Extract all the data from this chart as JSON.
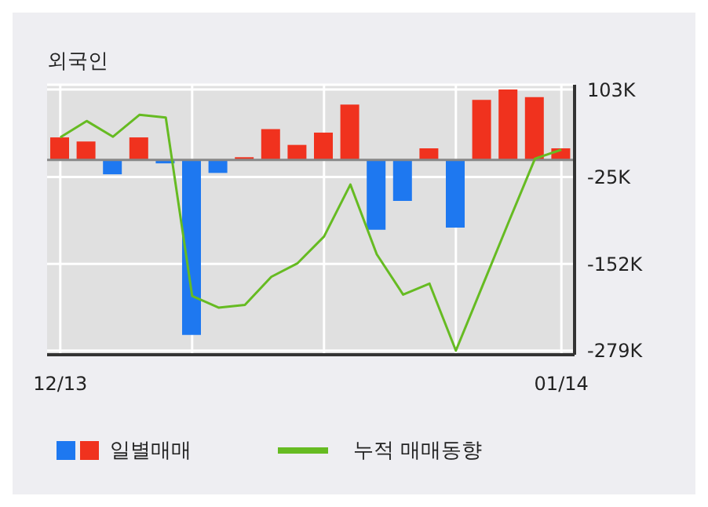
{
  "chart_data": {
    "type": "bar",
    "title": "외국인",
    "categories": [
      "12/13",
      null,
      null,
      null,
      null,
      null,
      null,
      null,
      null,
      null,
      null,
      null,
      null,
      null,
      null,
      null,
      null,
      null,
      null,
      "01/14"
    ],
    "series": [
      {
        "name": "일별매매",
        "colors": [
          "#f0321e",
          "#f0321e",
          "#1e78f0",
          "#f0321e",
          "#1e78f0",
          "#1e78f0",
          "#1e78f0",
          "#f0321e",
          "#f0321e",
          "#f0321e",
          "#f0321e",
          "#f0321e",
          "#1e78f0",
          "#1e78f0",
          "#f0321e",
          "#1e78f0",
          "#f0321e",
          "#f0321e",
          "#f0321e",
          "#f0321e"
        ],
        "values": [
          33,
          27,
          -21,
          33,
          -5,
          -256,
          -19,
          4,
          45,
          22,
          40,
          81,
          -102,
          -60,
          17,
          -99,
          88,
          103,
          92,
          17
        ]
      },
      {
        "name": "누적 매매동향",
        "type": "line",
        "color": "#66bb22",
        "values": [
          33,
          57,
          34,
          66,
          62,
          -199,
          -216,
          -212,
          -171,
          -151,
          -112,
          -36,
          -138,
          -197,
          -181,
          -279,
          -185,
          -91,
          2,
          15
        ]
      }
    ],
    "ylim": [
      -285,
      110
    ],
    "yticks": [
      {
        "value": 103,
        "label": "103K"
      },
      {
        "value": -25,
        "label": "-25K"
      },
      {
        "value": -152,
        "label": "-152K"
      },
      {
        "value": -279,
        "label": "-279K"
      }
    ],
    "ref_lines": [
      {
        "axis": "y",
        "value": 0,
        "color": "#888888"
      }
    ],
    "grid": true,
    "legend": "bottom"
  }
}
